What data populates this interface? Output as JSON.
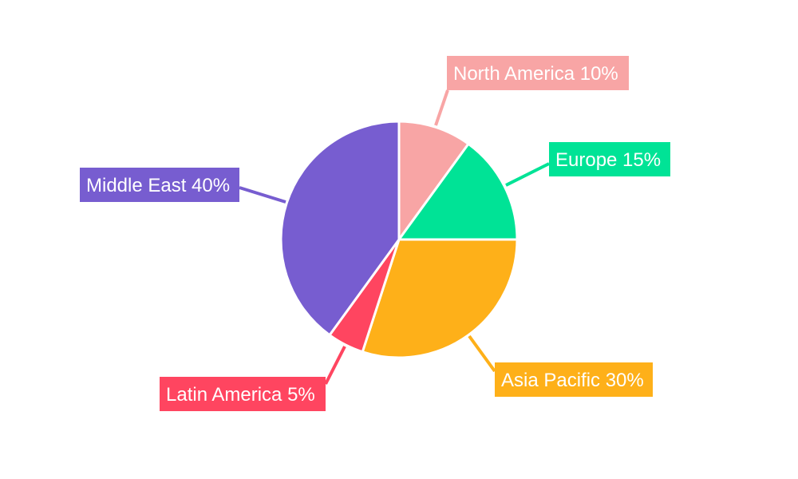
{
  "chart_data": {
    "type": "pie",
    "start_angle": "top, clockwise",
    "slices": [
      {
        "label": "North America",
        "value": 10,
        "display": "North America 10%",
        "color": "#f8a5a5"
      },
      {
        "label": "Europe",
        "value": 15,
        "display": "Europe 15%",
        "color": "#00e396"
      },
      {
        "label": "Asia Pacific",
        "value": 30,
        "display": "Asia Pacific 30%",
        "color": "#feb019"
      },
      {
        "label": "Latin America",
        "value": 5,
        "display": "Latin America 5%",
        "color": "#ff4560"
      },
      {
        "label": "Middle East",
        "value": 40,
        "display": "Middle East 40%",
        "color": "#775dd0"
      }
    ],
    "legend": "none, labels outside with leader lines"
  }
}
